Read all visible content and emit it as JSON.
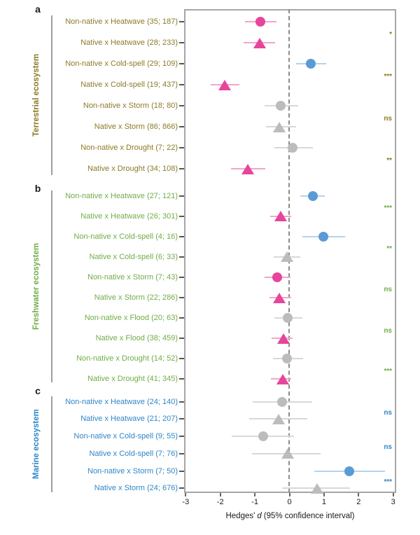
{
  "figure": {
    "panel_letters": {
      "a": "a",
      "b": "b",
      "c": "c"
    },
    "axis": {
      "title_prefix": "Hedges'",
      "title_italic": "d",
      "title_suffix": "(95% confidence interval)"
    }
  },
  "chart_data": {
    "type": "forest",
    "xlabel": "Hedges' d (95% confidence interval)",
    "xlim": [
      -3,
      3
    ],
    "zero_line": 0,
    "x_ticks": [
      -3,
      -2,
      -1,
      0,
      1,
      2,
      3
    ],
    "x_tick_labels": [
      "-3",
      "-2",
      "-1",
      "0",
      "1",
      "2",
      "3"
    ],
    "marker_semantics": {
      "circle": "Non-native",
      "triangle": "Native"
    },
    "colors": {
      "pink": "#e5469b",
      "pink_light": "#f2a6cc",
      "blue": "#5b9bd5",
      "blue_light": "#b5d3ed",
      "gray": "#bcbcbc",
      "gray_light": "#d8d8d8",
      "terrestrial": "#8c7a28",
      "freshwater": "#70ad47",
      "marine": "#2e86c8",
      "frame": "#a6a6a6",
      "zero_dash": "#8c8c8c"
    },
    "groups": [
      {
        "panel": "a",
        "ecosystem": "Terrestrial ecosystem",
        "color_key": "terrestrial",
        "rows": [
          {
            "label": "Non-native x Heatwave (35; 187)",
            "marker": "circle",
            "color": "pink",
            "d": -0.84,
            "ci": [
              -1.29,
              -0.37
            ]
          },
          {
            "label": "Native x Heatwave (28; 233)",
            "marker": "triangle",
            "color": "pink",
            "d": -0.87,
            "ci": [
              -1.32,
              -0.42
            ]
          },
          {
            "label": "Non-native x Cold-spell (29; 109)",
            "marker": "circle",
            "color": "blue",
            "d": 0.61,
            "ci": [
              0.2,
              1.06
            ]
          },
          {
            "label": "Native x Cold-spell (19; 437)",
            "marker": "triangle",
            "color": "pink",
            "d": -1.87,
            "ci": [
              -2.28,
              -1.45
            ]
          },
          {
            "label": "Non-native x Storm (18; 80)",
            "marker": "circle",
            "color": "gray",
            "d": -0.26,
            "ci": [
              -0.71,
              0.25
            ]
          },
          {
            "label": "Native x Storm (86; 866)",
            "marker": "triangle",
            "color": "gray",
            "d": -0.29,
            "ci": [
              -0.68,
              0.2
            ]
          },
          {
            "label": "Non-native x Drought (7; 22)",
            "marker": "circle",
            "color": "gray",
            "d": 0.09,
            "ci": [
              -0.43,
              0.67
            ]
          },
          {
            "label": "Native x Drought (34; 108)",
            "marker": "triangle",
            "color": "pink",
            "d": -1.2,
            "ci": [
              -1.69,
              -0.7
            ]
          }
        ],
        "pair_significance": [
          "*",
          "***",
          "ns",
          "**"
        ]
      },
      {
        "panel": "b",
        "ecosystem": "Freshwater ecosystem",
        "color_key": "freshwater",
        "rows": [
          {
            "label": "Non-native x Heatwave (27; 121)",
            "marker": "circle",
            "color": "blue",
            "d": 0.67,
            "ci": [
              0.31,
              1.03
            ]
          },
          {
            "label": "Native x Heatwave (26; 301)",
            "marker": "triangle",
            "color": "pink",
            "d": -0.25,
            "ci": [
              -0.56,
              0.06
            ]
          },
          {
            "label": "Non-native x Cold-spell (4; 16)",
            "marker": "circle",
            "color": "blue",
            "d": 0.98,
            "ci": [
              0.37,
              1.6
            ]
          },
          {
            "label": "Native x Cold-spell (6; 33)",
            "marker": "triangle",
            "color": "gray",
            "d": -0.07,
            "ci": [
              -0.46,
              0.31
            ]
          },
          {
            "label": "Non-native x Storm (7; 43)",
            "marker": "circle",
            "color": "pink",
            "d": -0.36,
            "ci": [
              -0.71,
              0.03
            ]
          },
          {
            "label": "Native x Storm (22; 286)",
            "marker": "triangle",
            "color": "pink",
            "d": -0.29,
            "ci": [
              -0.58,
              0.06
            ]
          },
          {
            "label": "Non-native x Flood (20; 63)",
            "marker": "circle",
            "color": "gray",
            "d": -0.06,
            "ci": [
              -0.44,
              0.37
            ]
          },
          {
            "label": "Native x Flood (38; 459)",
            "marker": "triangle",
            "color": "pink",
            "d": -0.17,
            "ci": [
              -0.51,
              0.1
            ]
          },
          {
            "label": "Non-native x Drought (14; 52)",
            "marker": "circle",
            "color": "gray",
            "d": -0.08,
            "ci": [
              -0.48,
              0.39
            ]
          },
          {
            "label": "Native x Drought (41; 345)",
            "marker": "triangle",
            "color": "pink",
            "d": -0.2,
            "ci": [
              -0.54,
              0.06
            ]
          }
        ],
        "pair_significance": [
          "***",
          "**",
          "ns",
          "ns",
          "***"
        ]
      },
      {
        "panel": "c",
        "ecosystem": "Marine ecosystem",
        "color_key": "marine",
        "rows": [
          {
            "label": "Non-native x Heatwave (24; 140)",
            "marker": "circle",
            "color": "gray",
            "d": -0.22,
            "ci": [
              -1.06,
              0.65
            ]
          },
          {
            "label": "Native x Heatwave (21; 207)",
            "marker": "triangle",
            "color": "gray",
            "d": -0.31,
            "ci": [
              -1.16,
              0.52
            ]
          },
          {
            "label": "Non-native x Cold-spell (9; 55)",
            "marker": "circle",
            "color": "gray",
            "d": -0.76,
            "ci": [
              -1.66,
              0.13
            ]
          },
          {
            "label": "Native x Cold-spell (7; 76)",
            "marker": "triangle",
            "color": "gray",
            "d": -0.06,
            "ci": [
              -1.08,
              0.91
            ]
          },
          {
            "label": "Non-native x Storm (7; 50)",
            "marker": "circle",
            "color": "blue",
            "d": 1.74,
            "ci": [
              0.72,
              2.76
            ]
          },
          {
            "label": "Native x Storm (24; 676)",
            "marker": "triangle",
            "color": "gray",
            "d": 0.79,
            "ci": [
              -0.21,
              1.75
            ]
          }
        ],
        "pair_significance": [
          "ns",
          "ns",
          "***"
        ]
      }
    ]
  }
}
